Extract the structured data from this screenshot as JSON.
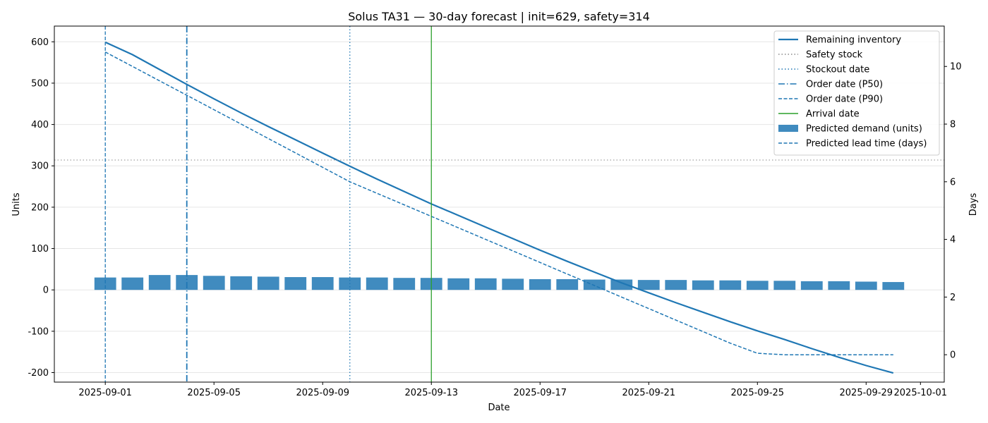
{
  "chart_data": {
    "type": "bar",
    "title": "Solus TA31 — 30-day forecast | init=629, safety=314",
    "xlabel": "Date",
    "ylabel": "Units",
    "y2label": "Days",
    "x_dates": [
      "2025-09-01",
      "2025-09-02",
      "2025-09-03",
      "2025-09-04",
      "2025-09-05",
      "2025-09-06",
      "2025-09-07",
      "2025-09-08",
      "2025-09-09",
      "2025-09-10",
      "2025-09-11",
      "2025-09-12",
      "2025-09-13",
      "2025-09-14",
      "2025-09-15",
      "2025-09-16",
      "2025-09-17",
      "2025-09-18",
      "2025-09-19",
      "2025-09-20",
      "2025-09-21",
      "2025-09-22",
      "2025-09-23",
      "2025-09-24",
      "2025-09-25",
      "2025-09-26",
      "2025-09-27",
      "2025-09-28",
      "2025-09-29",
      "2025-09-30"
    ],
    "xticks": [
      "2025-09-01",
      "2025-09-05",
      "2025-09-09",
      "2025-09-13",
      "2025-09-17",
      "2025-09-21",
      "2025-09-25",
      "2025-09-29",
      "2025-10-01"
    ],
    "xlim": [
      "2025-08-30T03:00",
      "2025-10-01T21:00"
    ],
    "ylim": [
      -223,
      638
    ],
    "yticks": [
      -200,
      -100,
      0,
      100,
      200,
      300,
      400,
      500,
      600
    ],
    "y2lim": [
      -0.95,
      11.4
    ],
    "y2ticks": [
      0,
      2,
      4,
      6,
      8,
      10
    ],
    "series": [
      {
        "name": "Remaining inventory",
        "axis": "left",
        "style": "solid",
        "color": "#1f77b4",
        "values": [
          599,
          569,
          533,
          497,
          462,
          428,
          395,
          363,
          331,
          299,
          268,
          238,
          208,
          180,
          152,
          124,
          96,
          69,
          43,
          17,
          -7,
          -31,
          -54,
          -77,
          -99,
          -120,
          -142,
          -163,
          -183,
          -201
        ]
      },
      {
        "name": "Predicted demand (units)",
        "axis": "left",
        "style": "bar",
        "color": "#1f77b4",
        "values": [
          30,
          30,
          36,
          36,
          34,
          33,
          32,
          31,
          31,
          30,
          30,
          29,
          29,
          28,
          28,
          27,
          26,
          26,
          25,
          25,
          24,
          24,
          23,
          23,
          22,
          22,
          21,
          21,
          20,
          19
        ]
      },
      {
        "name": "Predicted lead time (days)",
        "axis": "right",
        "style": "dashed",
        "color": "#1f77b4",
        "values": [
          10.5,
          10.0,
          9.5,
          9.0,
          8.5,
          8.0,
          7.5,
          7.0,
          6.5,
          6.0,
          5.6,
          5.2,
          4.8,
          4.4,
          4.0,
          3.6,
          3.2,
          2.8,
          2.4,
          2.0,
          1.6,
          1.2,
          0.8,
          0.4,
          0.05,
          0.0,
          0.0,
          0.0,
          0.0,
          0.0
        ]
      }
    ],
    "reference_lines": [
      {
        "name": "Safety stock",
        "type": "horizontal",
        "value": 314,
        "style": "dotted",
        "color": "#888888"
      },
      {
        "name": "Stockout date",
        "type": "vertical",
        "date": "2025-09-10",
        "style": "dotted",
        "color": "#1f77b4"
      },
      {
        "name": "Order date (P50)",
        "type": "vertical",
        "date": "2025-09-04",
        "style": "dashdot",
        "color": "#1f77b4"
      },
      {
        "name": "Order date (P90)",
        "type": "vertical",
        "date": "2025-09-01",
        "style": "dashed",
        "color": "#1f77b4"
      },
      {
        "name": "Arrival date",
        "type": "vertical",
        "date": "2025-09-13",
        "style": "solid",
        "color": "#2ca02c"
      }
    ],
    "legend": {
      "position": "top-right",
      "entries": [
        "Remaining inventory",
        "Safety stock",
        "Stockout date",
        "Order date (P50)",
        "Order date (P90)",
        "Arrival date",
        "Predicted demand (units)",
        "Predicted lead time (days)"
      ]
    },
    "grid": {
      "horizontal": true,
      "vertical": false
    }
  }
}
